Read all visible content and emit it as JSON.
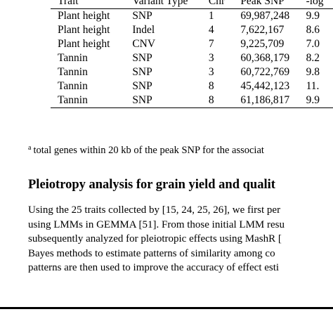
{
  "table": {
    "columns": [
      "Trait",
      "Variant Type",
      "Chr",
      "Peak SNP",
      "-log"
    ],
    "rows": [
      {
        "trait": "Plant height",
        "variant": "SNP",
        "chr": "1",
        "peak": "69,987,248",
        "log": "9.9"
      },
      {
        "trait": "Plant height",
        "variant": "Indel",
        "chr": "4",
        "peak": "7,622,167",
        "log": "8.6"
      },
      {
        "trait": "Plant height",
        "variant": "CNV",
        "chr": "7",
        "peak": "9,225,709",
        "log": "7.0"
      },
      {
        "trait": "Tannin",
        "variant": "SNP",
        "chr": "3",
        "peak": "60,368,179",
        "log": "8.2"
      },
      {
        "trait": "Tannin",
        "variant": "SNP",
        "chr": "3",
        "peak": "60,722,769",
        "log": "9.8"
      },
      {
        "trait": "Tannin",
        "variant": "SNP",
        "chr": "8",
        "peak": "45,442,123",
        "log": "11."
      },
      {
        "trait": "Tannin",
        "variant": "SNP",
        "chr": "8",
        "peak": "61,186,817",
        "log": "9.9"
      }
    ]
  },
  "footnote": {
    "marker": "a",
    "text": "total genes within 20 kb of the peak SNP for the associat"
  },
  "section": {
    "heading": "Pleiotropy analysis for grain yield and qualit"
  },
  "body": {
    "lines": [
      "Using the 25 traits collected by [15, 24, 25, 26], we first per",
      "using LMMs in GEMMA [51]. From those initial LMM resu",
      "subsequently analyzed for pleiotropic effects using MashR [",
      "Bayes methods to estimate patterns of similarity among co",
      "patterns are then used to improve the accuracy of effect esti"
    ]
  }
}
